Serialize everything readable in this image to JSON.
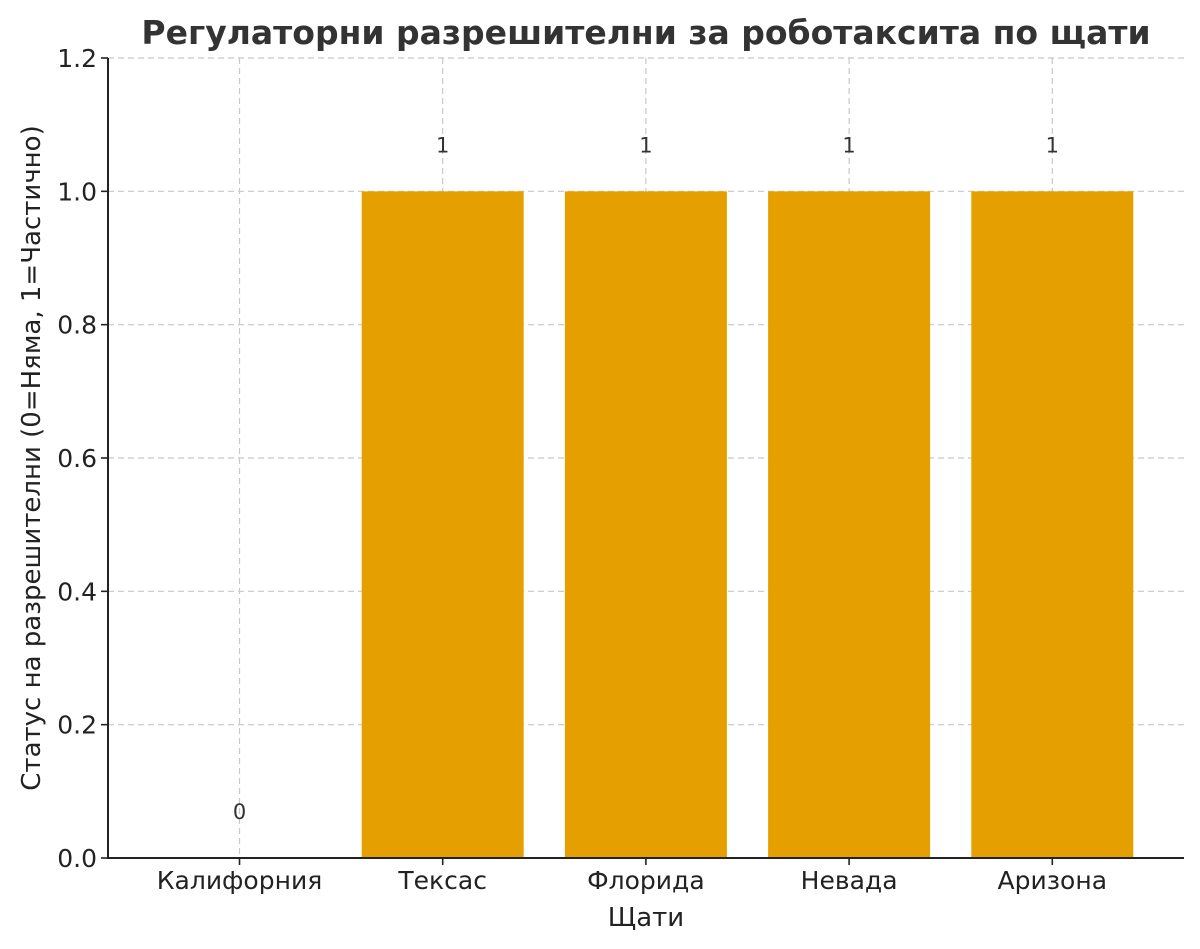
{
  "chart_data": {
    "type": "bar",
    "title": "Регулаторни разрешителни за роботаксита по щати",
    "xlabel": "Щати",
    "ylabel": "Статус на разрешителни (0=Няма, 1=Частично)",
    "categories": [
      "Калифорния",
      "Тексас",
      "Флорида",
      "Невада",
      "Аризона"
    ],
    "values": [
      0,
      1,
      1,
      1,
      1
    ],
    "data_labels": [
      "0",
      "1",
      "1",
      "1",
      "1"
    ],
    "ylim": [
      0,
      1.2
    ],
    "yticks": [
      0.0,
      0.2,
      0.4,
      0.6,
      0.8,
      1.0,
      1.2
    ],
    "ytick_labels": [
      "0.0",
      "0.2",
      "0.4",
      "0.6",
      "0.8",
      "1.0",
      "1.2"
    ],
    "grid": true,
    "bar_color": "#e5a000",
    "legend": "none"
  }
}
